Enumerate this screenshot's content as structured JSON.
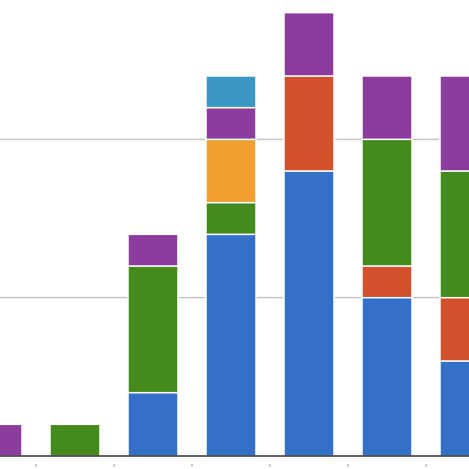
{
  "chart_data": {
    "type": "stacked-bar",
    "categories": [
      null,
      null,
      null,
      null,
      null,
      null,
      null
    ],
    "series": [
      {
        "color": "#3470c8",
        "values": [
          null,
          null,
          2,
          7,
          9,
          5,
          3
        ]
      },
      {
        "color": "#d2502c",
        "values": [
          null,
          null,
          null,
          null,
          3,
          1,
          2
        ]
      },
      {
        "color": "#458a1c",
        "values": [
          null,
          1,
          4,
          1,
          null,
          4,
          4
        ]
      },
      {
        "color": "#f0a030",
        "values": [
          null,
          null,
          null,
          2,
          null,
          null,
          null
        ]
      },
      {
        "color": "#8c3c9c",
        "values": [
          1,
          null,
          1,
          1,
          2,
          2,
          3
        ]
      },
      {
        "color": "#3b97c4",
        "values": [
          null,
          null,
          null,
          1,
          null,
          null,
          null
        ]
      }
    ],
    "ylim": [
      0,
      14.4
    ],
    "yticks": [
      0,
      5,
      10
    ],
    "grid": true
  }
}
